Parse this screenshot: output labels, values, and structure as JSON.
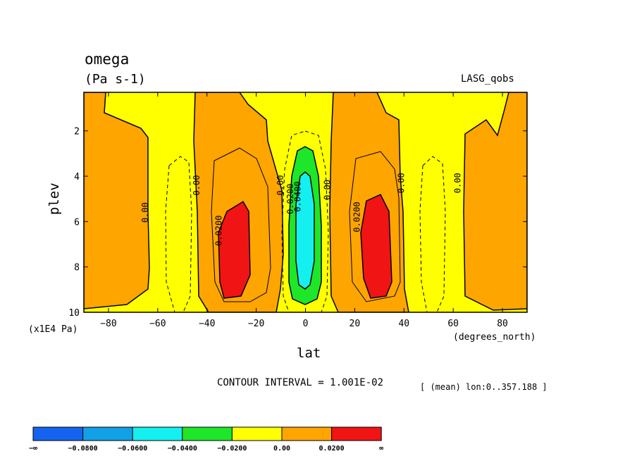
{
  "header": {
    "title": "omega",
    "units": "(Pa s-1)",
    "dataset": "LASG_qobs"
  },
  "footer": {
    "contour_interval": "CONTOUR INTERVAL = 1.001E-02",
    "averaging": "[ (mean) lon:0..357.188 ]"
  },
  "chart_data": {
    "type": "contour",
    "variable": "omega",
    "units": "(Pa s-1)",
    "xlabel": "lat",
    "xunits": "(degrees_north)",
    "ylabel": "plev",
    "yunits": "(x1E4 Pa)",
    "xlim": [
      -90,
      90
    ],
    "ylim": [
      10,
      0.3
    ],
    "x_ticks": [
      -80,
      -60,
      -40,
      -20,
      0,
      20,
      40,
      60,
      80
    ],
    "x_tick_labels": [
      "−80",
      "−60",
      "−40",
      "−20",
      "0",
      "20",
      "40",
      "60",
      "80"
    ],
    "y_ticks": [
      2,
      4,
      6,
      8,
      10
    ],
    "y_tick_labels": [
      "2",
      "4",
      "6",
      "8",
      "10"
    ],
    "contour_interval": 0.01001,
    "contour_line_labels": [
      {
        "text": "0.00",
        "lat": -64,
        "plev": 5.6
      },
      {
        "text": "0.00",
        "lat": -43,
        "plev": 4.4
      },
      {
        "text": "0.0200",
        "lat": -34,
        "plev": 6.4
      },
      {
        "text": "0.00",
        "lat": -9,
        "plev": 4.4
      },
      {
        "text": "0.0200",
        "lat": -5,
        "plev": 5.0
      },
      {
        "text": "0.0400",
        "lat": -2,
        "plev": 4.9
      },
      {
        "text": "0.00",
        "lat": 10,
        "plev": 4.6
      },
      {
        "text": "0.0200",
        "lat": 22,
        "plev": 5.8
      },
      {
        "text": "0.00",
        "lat": 40,
        "plev": 4.3
      },
      {
        "text": "0.00",
        "lat": 63,
        "plev": 4.3
      }
    ],
    "colorbar": {
      "colors": [
        "#1464f0",
        "#12a0e6",
        "#14f0f0",
        "#1ee628",
        "#ffff00",
        "#ffa500",
        "#f01414"
      ],
      "labels": [
        "−∞",
        "−0.0800",
        "−0.0600",
        "−0.0400",
        "−0.0200",
        "0.00",
        "0.0200",
        "∞"
      ]
    },
    "fill_colors": {
      "positive_low": "#ffa500",
      "positive_high": "#f01414",
      "near_zero": "#ffff00",
      "negative_mid": "#1ee628",
      "negative_strong": "#14f0f0"
    }
  }
}
